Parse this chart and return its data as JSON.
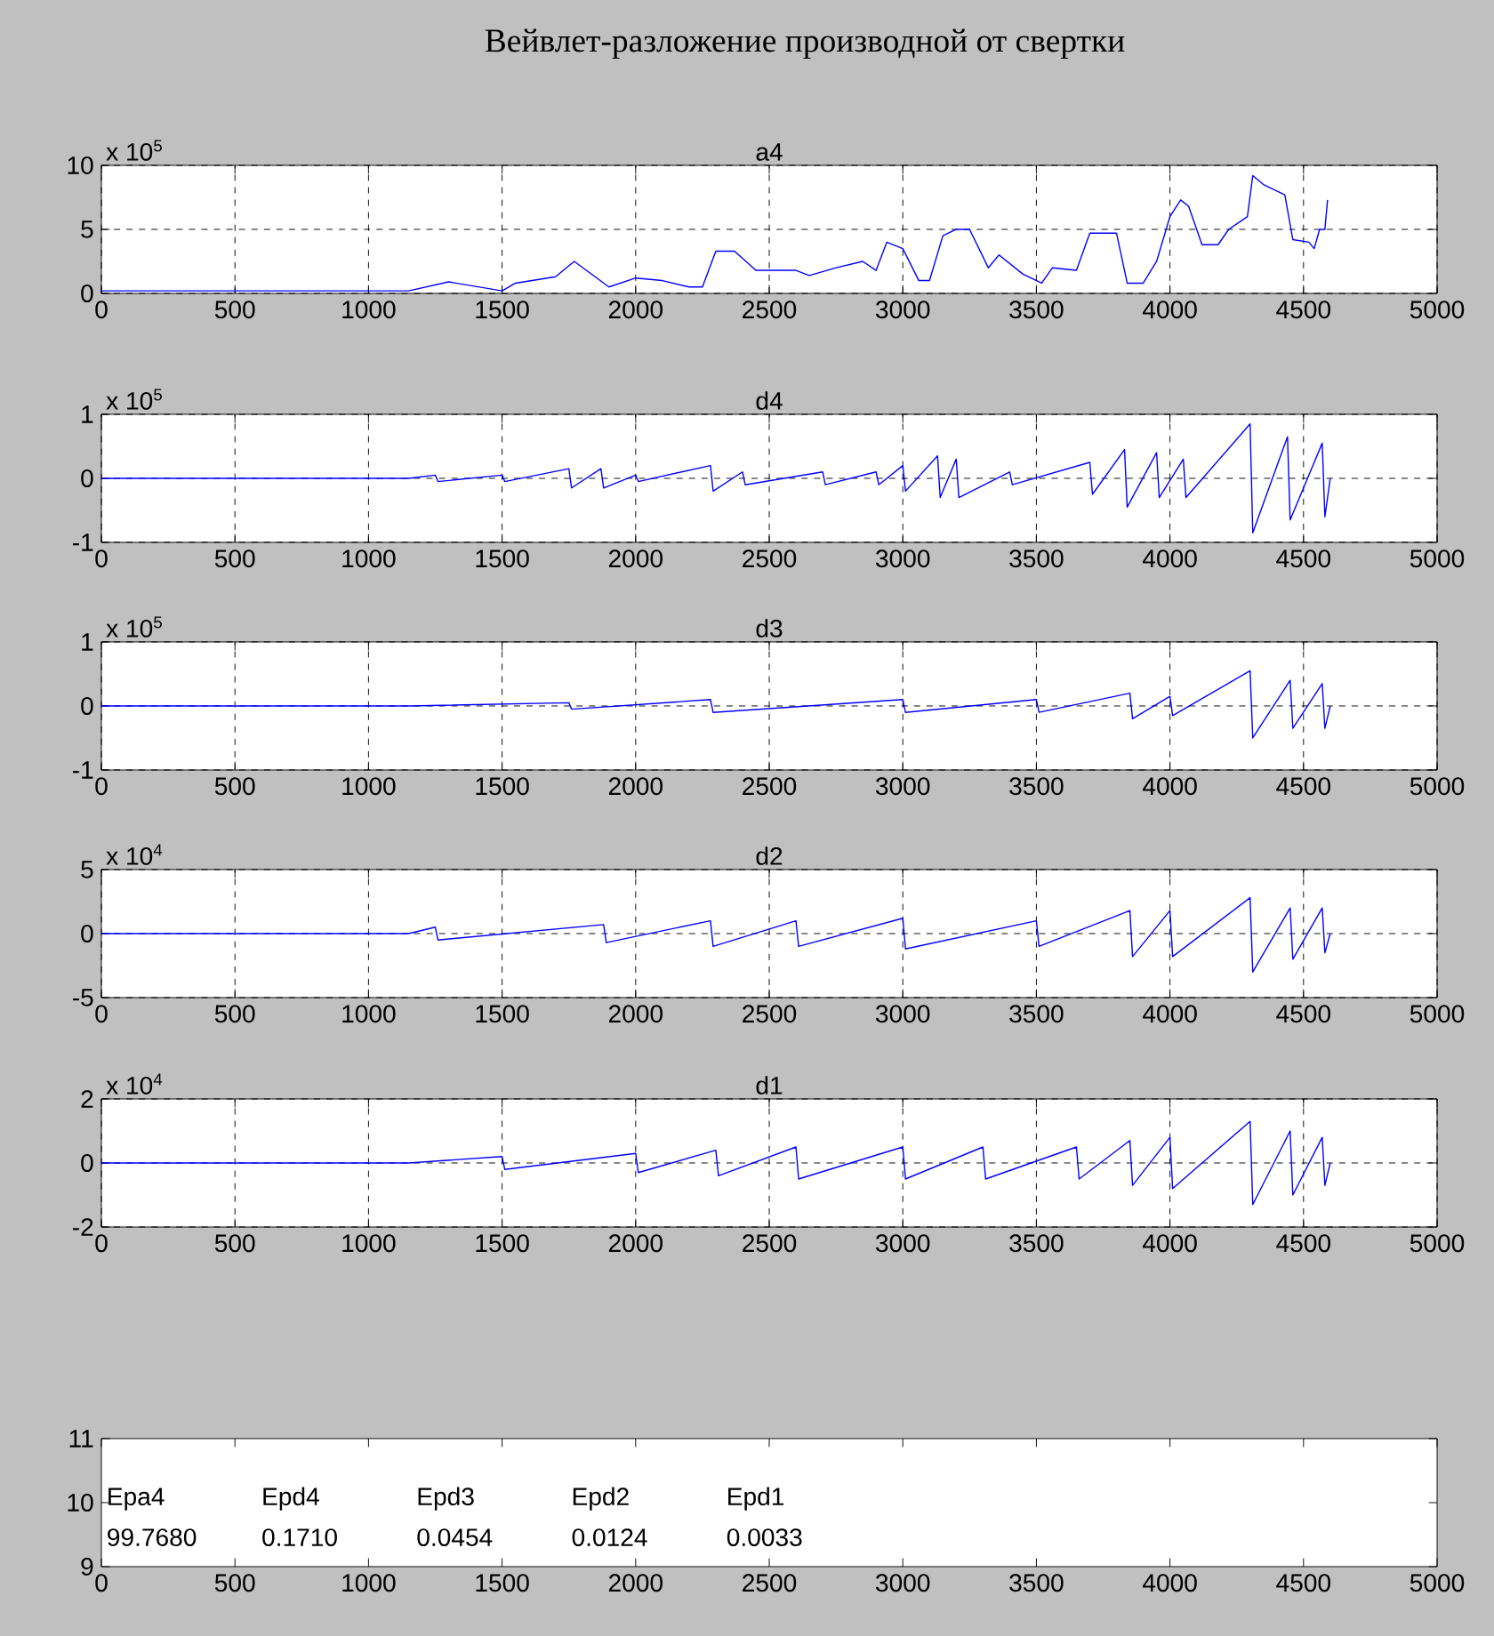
{
  "chart_data": [
    {
      "type": "line",
      "title": "Вейвлет-разложение производной от свертки",
      "subtitle": "a4",
      "annotations": [
        "x 10$^{5}$"
      ],
      "color": "#0000ff",
      "grid": true,
      "x": [
        0,
        1150,
        1300,
        1500,
        1550,
        1700,
        1770,
        1900,
        2000,
        2100,
        2200,
        2250,
        2300,
        2370,
        2450,
        2600,
        2650,
        2750,
        2850,
        2900,
        2940,
        3000,
        3060,
        3100,
        3150,
        3200,
        3250,
        3320,
        3360,
        3450,
        3520,
        3560,
        3650,
        3700,
        3800,
        3840,
        3900,
        3950,
        4000,
        4040,
        4070,
        4120,
        4180,
        4220,
        4290,
        4310,
        4350,
        4430,
        4460,
        4520,
        4540,
        4560,
        4580,
        4590
      ],
      "values": [
        0.2,
        0.2,
        0.9,
        0.2,
        0.8,
        1.3,
        2.5,
        0.5,
        1.2,
        1.0,
        0.5,
        0.5,
        3.3,
        3.3,
        1.8,
        1.8,
        1.4,
        2.0,
        2.5,
        1.8,
        4.0,
        3.5,
        1.0,
        1.0,
        4.5,
        5.0,
        5.0,
        2.0,
        3.0,
        1.5,
        0.8,
        2.0,
        1.8,
        4.7,
        4.7,
        0.8,
        0.8,
        2.5,
        6.0,
        7.3,
        6.8,
        3.8,
        3.8,
        5.0,
        6.0,
        9.2,
        8.5,
        7.7,
        4.2,
        4.0,
        3.5,
        5.0,
        5.0,
        7.3
      ],
      "xlim": [
        0,
        5000
      ],
      "xticks": [
        0,
        500,
        1000,
        1500,
        2000,
        2500,
        3000,
        3500,
        4000,
        4500,
        5000
      ],
      "ylim": [
        0,
        10
      ],
      "yticks": [
        0,
        5,
        10
      ]
    },
    {
      "type": "line",
      "subtitle": "d4",
      "annotations": [
        "x 10$^{5}$"
      ],
      "color": "#0000ff",
      "grid": true,
      "x": [
        0,
        1150,
        1250,
        1260,
        1500,
        1510,
        1750,
        1760,
        1870,
        1880,
        2000,
        2010,
        2280,
        2290,
        2400,
        2410,
        2700,
        2710,
        2900,
        2910,
        3000,
        3010,
        3130,
        3140,
        3200,
        3210,
        3400,
        3410,
        3700,
        3710,
        3830,
        3840,
        3950,
        3960,
        4050,
        4060,
        4300,
        4310,
        4440,
        4450,
        4570,
        4580,
        4600
      ],
      "values": [
        0,
        0,
        0.05,
        -0.05,
        0.05,
        -0.05,
        0.15,
        -0.15,
        0.15,
        -0.15,
        0.05,
        -0.05,
        0.2,
        -0.2,
        0.1,
        -0.1,
        0.1,
        -0.1,
        0.1,
        -0.1,
        0.2,
        -0.2,
        0.35,
        -0.3,
        0.3,
        -0.3,
        0.1,
        -0.1,
        0.25,
        -0.25,
        0.45,
        -0.45,
        0.4,
        -0.3,
        0.3,
        -0.3,
        0.85,
        -0.85,
        0.65,
        -0.65,
        0.55,
        -0.6,
        0
      ],
      "xlim": [
        0,
        5000
      ],
      "xticks": [
        0,
        500,
        1000,
        1500,
        2000,
        2500,
        3000,
        3500,
        4000,
        4500,
        5000
      ],
      "ylim": [
        -1,
        1
      ],
      "yticks": [
        -1,
        0,
        1
      ]
    },
    {
      "type": "line",
      "subtitle": "d3",
      "annotations": [
        "x 10$^{5}$"
      ],
      "color": "#0000ff",
      "grid": true,
      "x": [
        0,
        1150,
        1750,
        1760,
        2280,
        2290,
        3000,
        3010,
        3500,
        3510,
        3850,
        3860,
        4000,
        4010,
        4300,
        4310,
        4450,
        4460,
        4570,
        4580,
        4600
      ],
      "values": [
        0,
        0,
        0.05,
        -0.05,
        0.1,
        -0.1,
        0.1,
        -0.1,
        0.1,
        -0.1,
        0.2,
        -0.2,
        0.15,
        -0.15,
        0.55,
        -0.5,
        0.4,
        -0.35,
        0.35,
        -0.35,
        0
      ],
      "xlim": [
        0,
        5000
      ],
      "xticks": [
        0,
        500,
        1000,
        1500,
        2000,
        2500,
        3000,
        3500,
        4000,
        4500,
        5000
      ],
      "ylim": [
        -1,
        1
      ],
      "yticks": [
        -1,
        0,
        1
      ]
    },
    {
      "type": "line",
      "subtitle": "d2",
      "annotations": [
        "x 10$^{4}$"
      ],
      "color": "#0000ff",
      "grid": true,
      "x": [
        0,
        1150,
        1250,
        1260,
        1880,
        1890,
        2280,
        2290,
        2600,
        2610,
        3000,
        3010,
        3500,
        3510,
        3850,
        3860,
        4000,
        4010,
        4300,
        4310,
        4450,
        4460,
        4570,
        4580,
        4600
      ],
      "values": [
        0,
        0,
        0.5,
        -0.5,
        0.7,
        -0.7,
        1,
        -1,
        1,
        -1,
        1.2,
        -1.2,
        1,
        -1,
        1.8,
        -1.8,
        1.8,
        -1.8,
        2.8,
        -3,
        2,
        -2,
        2,
        -1.5,
        0
      ],
      "xlim": [
        0,
        5000
      ],
      "xticks": [
        0,
        500,
        1000,
        1500,
        2000,
        2500,
        3000,
        3500,
        4000,
        4500,
        5000
      ],
      "ylim": [
        -5,
        5
      ],
      "yticks": [
        -5,
        0,
        5
      ]
    },
    {
      "type": "line",
      "subtitle": "d1",
      "annotations": [
        "x 10$^{4}$"
      ],
      "color": "#0000ff",
      "grid": true,
      "x": [
        0,
        1150,
        1500,
        1510,
        2000,
        2010,
        2300,
        2310,
        2600,
        2610,
        3000,
        3010,
        3300,
        3310,
        3650,
        3660,
        3850,
        3860,
        4000,
        4010,
        4300,
        4310,
        4450,
        4460,
        4570,
        4580,
        4600
      ],
      "values": [
        0,
        0,
        0.2,
        -0.2,
        0.3,
        -0.3,
        0.4,
        -0.4,
        0.5,
        -0.5,
        0.5,
        -0.5,
        0.5,
        -0.5,
        0.5,
        -0.5,
        0.7,
        -0.7,
        0.8,
        -0.8,
        1.3,
        -1.3,
        1,
        -1,
        0.8,
        -0.7,
        0
      ],
      "xlim": [
        0,
        5000
      ],
      "xticks": [
        0,
        500,
        1000,
        1500,
        2000,
        2500,
        3000,
        3500,
        4000,
        4500,
        5000
      ],
      "ylim": [
        -2,
        2
      ],
      "yticks": [
        -2,
        0,
        2
      ]
    },
    {
      "type": "line",
      "annotations": [
        "Epa4",
        "99.7680",
        "Epd4",
        "0.1710",
        "Epd3",
        "0.0454",
        "Epd2",
        "0.0124",
        "Epd1",
        "0.0033"
      ],
      "xlim": [
        0,
        5000
      ],
      "xticks": [
        0,
        500,
        1000,
        1500,
        2000,
        2500,
        3000,
        3500,
        4000,
        4500,
        5000
      ],
      "ylim": [
        9,
        11
      ],
      "yticks": [
        9,
        10,
        11
      ]
    }
  ]
}
